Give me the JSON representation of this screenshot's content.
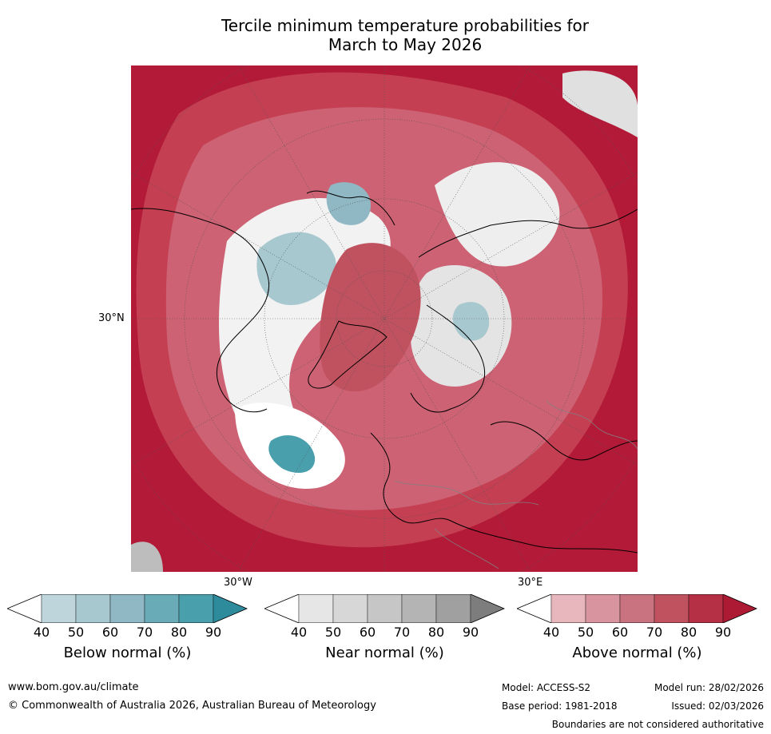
{
  "title": {
    "line1": "Tercile minimum temperature probabilities for",
    "line2": "March to May 2026"
  },
  "map": {
    "lat_label": "30°N",
    "lon_label_left": "30°W",
    "lon_label_right": "30°E"
  },
  "legends": [
    {
      "label": "Below normal (%)",
      "ticks": [
        "40",
        "50",
        "60",
        "70",
        "80",
        "90"
      ],
      "colors": [
        "#ffffff",
        "#bed5dc",
        "#a8c8d0",
        "#8fb8c4",
        "#6aabb8",
        "#4a9fad",
        "#2e8b9c"
      ]
    },
    {
      "label": "Near normal (%)",
      "ticks": [
        "40",
        "50",
        "60",
        "70",
        "80",
        "90"
      ],
      "colors": [
        "#ffffff",
        "#e6e6e6",
        "#d7d7d7",
        "#c6c6c6",
        "#b4b4b4",
        "#a0a0a0",
        "#7d7d7d"
      ]
    },
    {
      "label": "Above normal (%)",
      "ticks": [
        "40",
        "50",
        "60",
        "70",
        "80",
        "90"
      ],
      "colors": [
        "#ffffff",
        "#e8b6bd",
        "#d9959f",
        "#ca7380",
        "#c0525f",
        "#b52f45",
        "#ad1a33"
      ]
    }
  ],
  "footer": {
    "website": "www.bom.gov.au/climate",
    "copyright": "© Commonwealth of Australia 2026, Australian Bureau of Meteorology",
    "model": "Model: ACCESS-S2",
    "model_run": "Model run: 28/02/2026",
    "base_period": "Base period: 1981-2018",
    "issued": "Issued: 02/03/2026",
    "disclaimer": "Boundaries are not considered authoritative"
  }
}
